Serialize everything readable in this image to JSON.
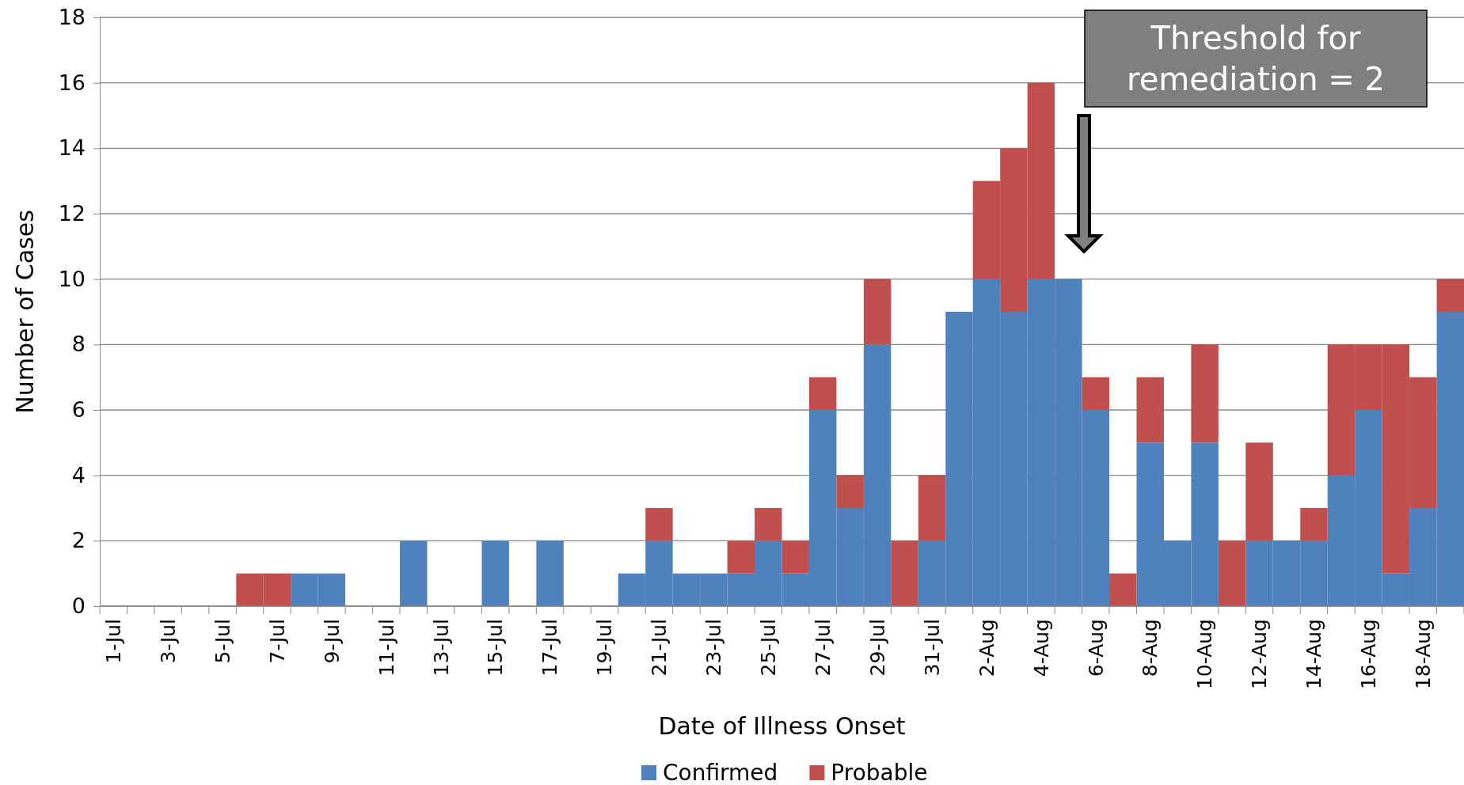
{
  "chart_data": {
    "type": "bar",
    "stacked": true,
    "xlabel": "Date of Illness Onset",
    "ylabel": "Number of Cases",
    "categories": [
      "1-Jul",
      null,
      "3-Jul",
      null,
      "5-Jul",
      null,
      "7-Jul",
      null,
      "9-Jul",
      null,
      "11-Jul",
      null,
      "13-Jul",
      null,
      "15-Jul",
      null,
      "17-Jul",
      null,
      "19-Jul",
      null,
      "21-Jul",
      null,
      "23-Jul",
      null,
      "25-Jul",
      null,
      "27-Jul",
      null,
      "29-Jul",
      null,
      "31-Jul",
      null,
      "2-Aug",
      null,
      "4-Aug",
      null,
      "6-Aug",
      null,
      "8-Aug",
      null,
      "10-Aug",
      null,
      "12-Aug",
      null,
      "14-Aug",
      null,
      "16-Aug",
      null,
      "18-Aug",
      null
    ],
    "series": [
      {
        "name": "Confirmed",
        "color": "#4f81bd",
        "values": [
          0,
          0,
          0,
          0,
          0,
          0,
          0,
          1,
          1,
          0,
          0,
          2,
          0,
          0,
          2,
          0,
          2,
          0,
          0,
          1,
          2,
          1,
          1,
          1,
          2,
          1,
          6,
          3,
          8,
          0,
          2,
          9,
          10,
          9,
          10,
          10,
          6,
          0,
          5,
          2,
          5,
          0,
          2,
          2,
          2,
          4,
          6,
          1,
          3,
          9
        ]
      },
      {
        "name": "Probable",
        "color": "#c0504d",
        "values": [
          0,
          0,
          0,
          0,
          0,
          1,
          1,
          0,
          0,
          0,
          0,
          0,
          0,
          0,
          0,
          0,
          0,
          0,
          0,
          0,
          1,
          0,
          0,
          1,
          1,
          1,
          1,
          1,
          2,
          2,
          2,
          0,
          3,
          5,
          6,
          0,
          1,
          1,
          2,
          0,
          3,
          2,
          3,
          0,
          1,
          4,
          2,
          7,
          4,
          1
        ]
      }
    ],
    "ylim": [
      0,
      18
    ],
    "yticks": [
      0,
      2,
      4,
      6,
      8,
      10,
      12,
      14,
      16,
      18
    ],
    "grid": "y",
    "legend": "bottom",
    "annotations": [
      "Threshold for remediation = 2"
    ]
  }
}
